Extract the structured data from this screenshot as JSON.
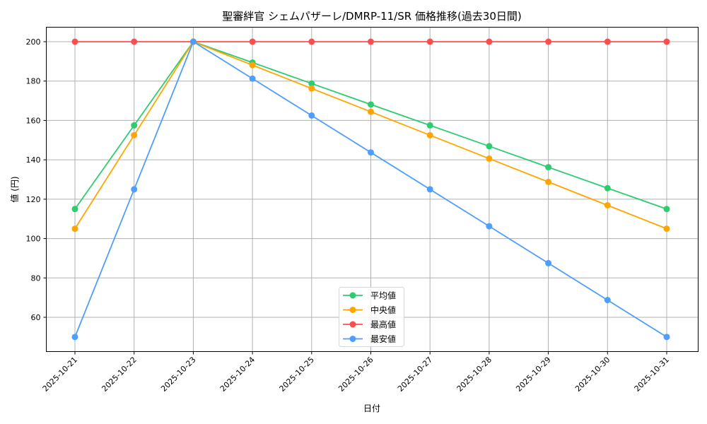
{
  "chart_data": {
    "type": "line",
    "title": "聖審絆官 シェムパザーレ/DMRP-11/SR 価格推移(過去30日間)",
    "xlabel": "日付",
    "ylabel": "値 (円)",
    "categories": [
      "2025-10-21",
      "2025-10-22",
      "2025-10-23",
      "2025-10-24",
      "2025-10-25",
      "2025-10-26",
      "2025-10-27",
      "2025-10-28",
      "2025-10-29",
      "2025-10-30",
      "2025-10-31"
    ],
    "yticks": [
      60,
      80,
      100,
      120,
      140,
      160,
      180,
      200
    ],
    "ylim": [
      42,
      207
    ],
    "grid": true,
    "legend_position": "lower center",
    "series": [
      {
        "name": "平均値",
        "color": "#2ecc71",
        "values": [
          115,
          157.5,
          200,
          189.4,
          178.75,
          168.1,
          157.5,
          146.9,
          136.25,
          125.6,
          115
        ]
      },
      {
        "name": "中央値",
        "color": "#ffa500",
        "values": [
          105,
          152.5,
          200,
          188.1,
          176.25,
          164.4,
          152.5,
          140.6,
          128.75,
          116.9,
          105
        ]
      },
      {
        "name": "最高値",
        "color": "#ff4d4d",
        "values": [
          200,
          200,
          200,
          200,
          200,
          200,
          200,
          200,
          200,
          200,
          200
        ]
      },
      {
        "name": "最安値",
        "color": "#4d9eff",
        "values": [
          50,
          125,
          200,
          181.25,
          162.5,
          143.75,
          125,
          106.25,
          87.5,
          68.75,
          50
        ]
      }
    ]
  }
}
